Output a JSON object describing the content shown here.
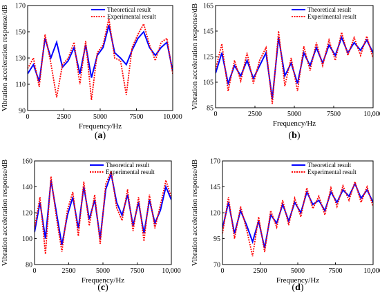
{
  "figure": {
    "line_colors": {
      "theoretical": "#0000ff",
      "experimental": "#ff0000"
    },
    "line_styles": {
      "theoretical": "solid",
      "experimental": "dotted"
    }
  },
  "chart_data": [
    {
      "panel_label": "(a)",
      "type": "line",
      "xlabel": "Frequency/Hz",
      "ylabel": "Vibration acceleration response/dB",
      "xlim": [
        0,
        10000
      ],
      "ylim": [
        90,
        170
      ],
      "x_ticks": [
        "0",
        "2500",
        "5000",
        "7500",
        "10,000"
      ],
      "y_ticks": [
        "90",
        "110",
        "130",
        "150",
        "170"
      ],
      "legend_position": "top-right",
      "series": [
        {
          "name": "Theoretical result",
          "x": [
            0,
            400,
            800,
            1200,
            1600,
            2000,
            2400,
            2800,
            3200,
            3600,
            4000,
            4400,
            4800,
            5200,
            5600,
            6000,
            6400,
            6800,
            7200,
            7600,
            8000,
            8400,
            8800,
            9200,
            9600,
            10000
          ],
          "values": [
            118,
            125,
            112,
            145,
            130,
            142,
            123,
            128,
            138,
            118,
            140,
            115,
            132,
            138,
            155,
            134,
            130,
            125,
            136,
            145,
            150,
            138,
            132,
            138,
            142,
            120
          ]
        },
        {
          "name": "Experimental result",
          "x": [
            0,
            400,
            800,
            1200,
            1600,
            2000,
            2400,
            2800,
            3200,
            3600,
            4000,
            4400,
            4800,
            5200,
            5600,
            6000,
            6400,
            6800,
            7200,
            7600,
            8000,
            8400,
            8800,
            9200,
            9600,
            10000
          ],
          "values": [
            122,
            130,
            108,
            148,
            126,
            100,
            125,
            130,
            142,
            110,
            143,
            98,
            134,
            140,
            160,
            130,
            128,
            102,
            138,
            148,
            156,
            140,
            128,
            142,
            145,
            118
          ]
        }
      ]
    },
    {
      "panel_label": "(b)",
      "type": "line",
      "xlabel": "Frequency/Hz",
      "ylabel": "Vibration acceleration response/dB",
      "xlim": [
        0,
        10000
      ],
      "ylim": [
        85,
        165
      ],
      "x_ticks": [
        "0",
        "2500",
        "5000",
        "7500",
        "10,000"
      ],
      "y_ticks": [
        "85",
        "105",
        "125",
        "145",
        "165"
      ],
      "legend_position": "top-right",
      "series": [
        {
          "name": "Theoretical result",
          "x": [
            0,
            400,
            800,
            1200,
            1600,
            2000,
            2400,
            2800,
            3200,
            3600,
            4000,
            4400,
            4800,
            5200,
            5600,
            6000,
            6400,
            6800,
            7200,
            7600,
            8000,
            8400,
            8800,
            9200,
            9600,
            10000
          ],
          "values": [
            112,
            128,
            104,
            118,
            110,
            122,
            108,
            118,
            128,
            92,
            140,
            110,
            120,
            104,
            128,
            118,
            132,
            120,
            134,
            126,
            140,
            128,
            136,
            130,
            138,
            128
          ]
        },
        {
          "name": "Experimental result",
          "x": [
            0,
            400,
            800,
            1200,
            1600,
            2000,
            2400,
            2800,
            3200,
            3600,
            4000,
            4400,
            4800,
            5200,
            5600,
            6000,
            6400,
            6800,
            7200,
            7600,
            8000,
            8400,
            8800,
            9200,
            9600,
            10000
          ],
          "values": [
            115,
            135,
            98,
            122,
            106,
            128,
            104,
            122,
            132,
            88,
            145,
            102,
            124,
            98,
            133,
            114,
            136,
            118,
            138,
            122,
            144,
            126,
            140,
            126,
            141,
            124
          ]
        }
      ]
    },
    {
      "panel_label": "(c)",
      "type": "line",
      "xlabel": "Frequency/Hz",
      "ylabel": "Vibration acceleration response/dB",
      "xlim": [
        0,
        10000
      ],
      "ylim": [
        80,
        160
      ],
      "x_ticks": [
        "0",
        "2500",
        "5000",
        "7500",
        "10,000"
      ],
      "y_ticks": [
        "80",
        "100",
        "120",
        "140",
        "160"
      ],
      "legend_position": "top-right",
      "series": [
        {
          "name": "Theoretical result",
          "x": [
            0,
            400,
            800,
            1200,
            1600,
            2000,
            2400,
            2800,
            3200,
            3600,
            4000,
            4400,
            4800,
            5200,
            5600,
            6000,
            6400,
            6800,
            7200,
            7600,
            8000,
            8400,
            8800,
            9200,
            9600,
            10000
          ],
          "values": [
            105,
            128,
            100,
            145,
            120,
            95,
            118,
            132,
            108,
            140,
            115,
            130,
            100,
            138,
            150,
            128,
            118,
            134,
            110,
            128,
            104,
            130,
            112,
            122,
            140,
            130
          ]
        },
        {
          "name": "Experimental result",
          "x": [
            0,
            400,
            800,
            1200,
            1600,
            2000,
            2400,
            2800,
            3200,
            3600,
            4000,
            4400,
            4800,
            5200,
            5600,
            6000,
            6400,
            6800,
            7200,
            7600,
            8000,
            8400,
            8800,
            9200,
            9600,
            10000
          ],
          "values": [
            108,
            132,
            88,
            148,
            116,
            90,
            122,
            136,
            102,
            144,
            110,
            134,
            96,
            142,
            152,
            124,
            114,
            138,
            106,
            132,
            98,
            134,
            108,
            126,
            145,
            132
          ]
        }
      ]
    },
    {
      "panel_label": "(d)",
      "type": "line",
      "xlabel": "Frequency/Hz",
      "ylabel": "Vibration acceleration response/dB",
      "xlim": [
        0,
        10000
      ],
      "ylim": [
        70,
        170
      ],
      "x_ticks": [
        "0",
        "2500",
        "5000",
        "7500",
        "10,000"
      ],
      "y_ticks": [
        "70",
        "95",
        "120",
        "145",
        "170"
      ],
      "legend_position": "top-right",
      "series": [
        {
          "name": "Theoretical result",
          "x": [
            0,
            400,
            800,
            1200,
            1600,
            2000,
            2400,
            2800,
            3200,
            3600,
            4000,
            4400,
            4800,
            5200,
            5600,
            6000,
            6400,
            6800,
            7200,
            7600,
            8000,
            8400,
            8800,
            9200,
            9600,
            10000
          ],
          "values": [
            105,
            130,
            100,
            122,
            108,
            92,
            112,
            86,
            118,
            110,
            128,
            112,
            130,
            120,
            140,
            128,
            132,
            122,
            140,
            130,
            142,
            136,
            148,
            134,
            142,
            130
          ]
        },
        {
          "name": "Experimental result",
          "x": [
            0,
            400,
            800,
            1200,
            1600,
            2000,
            2400,
            2800,
            3200,
            3600,
            4000,
            4400,
            4800,
            5200,
            5600,
            6000,
            6400,
            6800,
            7200,
            7600,
            8000,
            8400,
            8800,
            9200,
            9600,
            10000
          ],
          "values": [
            100,
            135,
            95,
            126,
            104,
            78,
            116,
            82,
            122,
            106,
            132,
            108,
            134,
            116,
            144,
            124,
            136,
            118,
            144,
            126,
            146,
            132,
            150,
            130,
            145,
            126
          ]
        }
      ]
    }
  ]
}
